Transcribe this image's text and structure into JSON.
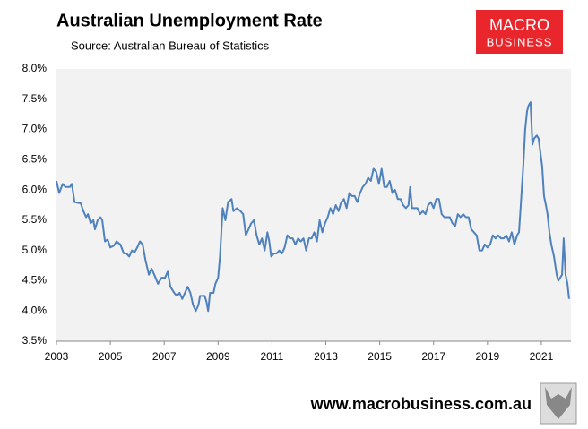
{
  "chart_data": {
    "type": "line",
    "title": "Australian Unemployment Rate",
    "subtitle": "Source: Australian Bureau of Statistics",
    "color": "#4f81bd",
    "xlim": [
      2003,
      2022.1
    ],
    "xticks": [
      2003,
      2005,
      2007,
      2009,
      2011,
      2013,
      2015,
      2017,
      2019,
      2021
    ],
    "ylim": [
      3.5,
      8.0
    ],
    "yticks": [
      {
        "value": 3.5,
        "label": "3.5%"
      },
      {
        "value": 4.0,
        "label": "4.0%"
      },
      {
        "value": 4.5,
        "label": "4.5%"
      },
      {
        "value": 5.0,
        "label": "5.0%"
      },
      {
        "value": 5.5,
        "label": "5.5%"
      },
      {
        "value": 6.0,
        "label": "6.0%"
      },
      {
        "value": 6.5,
        "label": "6.5%"
      },
      {
        "value": 7.0,
        "label": "7.0%"
      },
      {
        "value": 7.5,
        "label": "7.5%"
      },
      {
        "value": 8.0,
        "label": "8.0%"
      }
    ],
    "grid": false,
    "x": [
      2003.0,
      2003.1,
      2003.23,
      2003.33,
      2003.5,
      2003.57,
      2003.67,
      2003.9,
      2004.0,
      2004.1,
      2004.17,
      2004.27,
      2004.37,
      2004.43,
      2004.53,
      2004.63,
      2004.7,
      2004.8,
      2004.9,
      2005.0,
      2005.13,
      2005.23,
      2005.37,
      2005.5,
      2005.6,
      2005.7,
      2005.8,
      2005.9,
      2006.0,
      2006.1,
      2006.2,
      2006.3,
      2006.43,
      2006.53,
      2006.63,
      2006.77,
      2006.9,
      2007.03,
      2007.13,
      2007.23,
      2007.37,
      2007.47,
      2007.57,
      2007.67,
      2007.77,
      2007.87,
      2007.97,
      2008.07,
      2008.17,
      2008.27,
      2008.33,
      2008.5,
      2008.57,
      2008.63,
      2008.7,
      2008.83,
      2008.9,
      2009.0,
      2009.07,
      2009.17,
      2009.27,
      2009.37,
      2009.5,
      2009.57,
      2009.7,
      2009.83,
      2009.93,
      2010.03,
      2010.13,
      2010.23,
      2010.33,
      2010.43,
      2010.53,
      2010.63,
      2010.73,
      2010.83,
      2010.9,
      2010.97,
      2011.07,
      2011.17,
      2011.27,
      2011.37,
      2011.47,
      2011.57,
      2011.67,
      2011.77,
      2011.87,
      2011.97,
      2012.07,
      2012.17,
      2012.27,
      2012.37,
      2012.47,
      2012.57,
      2012.67,
      2012.77,
      2012.87,
      2012.97,
      2013.07,
      2013.17,
      2013.27,
      2013.37,
      2013.47,
      2013.57,
      2013.67,
      2013.77,
      2013.87,
      2013.97,
      2014.07,
      2014.17,
      2014.27,
      2014.37,
      2014.47,
      2014.57,
      2014.67,
      2014.77,
      2014.87,
      2014.97,
      2015.07,
      2015.17,
      2015.27,
      2015.37,
      2015.47,
      2015.57,
      2015.67,
      2015.77,
      2015.87,
      2015.97,
      2016.07,
      2016.13,
      2016.2,
      2016.3,
      2016.4,
      2016.5,
      2016.6,
      2016.7,
      2016.8,
      2016.9,
      2017.0,
      2017.1,
      2017.2,
      2017.3,
      2017.4,
      2017.5,
      2017.6,
      2017.7,
      2017.8,
      2017.9,
      2018.0,
      2018.1,
      2018.2,
      2018.3,
      2018.4,
      2018.5,
      2018.6,
      2018.7,
      2018.8,
      2018.9,
      2019.0,
      2019.1,
      2019.2,
      2019.3,
      2019.4,
      2019.5,
      2019.6,
      2019.7,
      2019.8,
      2019.9,
      2020.0,
      2020.1,
      2020.17,
      2020.23,
      2020.33,
      2020.4,
      2020.47,
      2020.53,
      2020.6,
      2020.67,
      2020.73,
      2020.83,
      2020.9,
      2020.97,
      2021.03,
      2021.1,
      2021.17,
      2021.23,
      2021.3,
      2021.37,
      2021.47,
      2021.57,
      2021.63,
      2021.7,
      2021.77,
      2021.83,
      2021.9,
      2021.97,
      2022.03
    ],
    "values": [
      6.15,
      5.95,
      6.1,
      6.05,
      6.05,
      6.1,
      5.8,
      5.78,
      5.65,
      5.55,
      5.6,
      5.45,
      5.5,
      5.35,
      5.5,
      5.55,
      5.5,
      5.15,
      5.18,
      5.05,
      5.08,
      5.15,
      5.1,
      4.95,
      4.95,
      4.9,
      5.0,
      4.97,
      5.05,
      5.15,
      5.1,
      4.85,
      4.6,
      4.7,
      4.6,
      4.45,
      4.55,
      4.55,
      4.65,
      4.4,
      4.3,
      4.25,
      4.3,
      4.2,
      4.3,
      4.4,
      4.3,
      4.1,
      4.0,
      4.1,
      4.25,
      4.25,
      4.15,
      4.0,
      4.3,
      4.3,
      4.45,
      4.55,
      4.9,
      5.7,
      5.5,
      5.8,
      5.85,
      5.65,
      5.7,
      5.65,
      5.6,
      5.25,
      5.35,
      5.45,
      5.5,
      5.25,
      5.1,
      5.2,
      5.0,
      5.3,
      5.15,
      4.9,
      4.95,
      4.95,
      5.0,
      4.95,
      5.05,
      5.25,
      5.2,
      5.2,
      5.1,
      5.2,
      5.15,
      5.2,
      5.0,
      5.2,
      5.2,
      5.3,
      5.15,
      5.5,
      5.3,
      5.45,
      5.55,
      5.7,
      5.6,
      5.75,
      5.65,
      5.8,
      5.85,
      5.7,
      5.95,
      5.9,
      5.9,
      5.8,
      5.95,
      6.05,
      6.1,
      6.2,
      6.15,
      6.35,
      6.3,
      6.1,
      6.35,
      6.05,
      6.05,
      6.15,
      5.95,
      6.0,
      5.85,
      5.85,
      5.75,
      5.7,
      5.75,
      6.05,
      5.7,
      5.7,
      5.7,
      5.6,
      5.65,
      5.6,
      5.75,
      5.8,
      5.7,
      5.85,
      5.85,
      5.6,
      5.55,
      5.55,
      5.55,
      5.45,
      5.4,
      5.6,
      5.55,
      5.6,
      5.55,
      5.55,
      5.35,
      5.3,
      5.25,
      5.0,
      5.0,
      5.1,
      5.05,
      5.1,
      5.25,
      5.2,
      5.25,
      5.2,
      5.2,
      5.25,
      5.15,
      5.3,
      5.1,
      5.25,
      5.3,
      5.7,
      6.4,
      7.0,
      7.3,
      7.4,
      7.45,
      6.75,
      6.85,
      6.9,
      6.85,
      6.6,
      6.4,
      5.9,
      5.75,
      5.6,
      5.3,
      5.1,
      4.9,
      4.6,
      4.5,
      4.55,
      4.6,
      5.2,
      4.6,
      4.45,
      4.2
    ]
  },
  "logo": {
    "top": "MACRO",
    "bottom": "BUSINESS"
  },
  "footer": "www.macrobusiness.com.au"
}
